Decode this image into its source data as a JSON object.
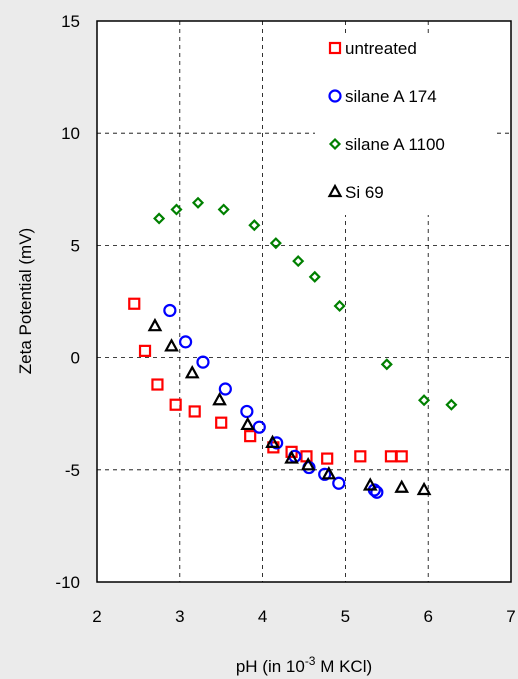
{
  "chart_data": {
    "type": "scatter",
    "xlabel_prefix": "pH (in 10",
    "xlabel_sup": "-3",
    "xlabel_suffix": " M KCl)",
    "ylabel": "Zeta Potential (mV)",
    "xlim": [
      2,
      7
    ],
    "ylim": [
      -10,
      15
    ],
    "xticks": [
      2,
      3,
      4,
      5,
      6,
      7
    ],
    "yticks": [
      -10,
      -5,
      0,
      5,
      10,
      15
    ],
    "grid": "dashed",
    "legend_position": "top-right",
    "series": [
      {
        "name": "untreated",
        "marker": "square",
        "color": "#ff0000",
        "points": [
          [
            2.45,
            2.4
          ],
          [
            2.58,
            0.3
          ],
          [
            2.73,
            -1.2
          ],
          [
            2.95,
            -2.1
          ],
          [
            3.18,
            -2.4
          ],
          [
            3.5,
            -2.9
          ],
          [
            3.85,
            -3.5
          ],
          [
            4.13,
            -4.0
          ],
          [
            4.35,
            -4.2
          ],
          [
            4.53,
            -4.4
          ],
          [
            4.78,
            -4.5
          ],
          [
            5.18,
            -4.4
          ],
          [
            5.55,
            -4.4
          ],
          [
            5.68,
            -4.4
          ]
        ]
      },
      {
        "name": "silane A 174",
        "marker": "circle",
        "color": "#0000ff",
        "points": [
          [
            2.88,
            2.1
          ],
          [
            3.07,
            0.7
          ],
          [
            3.28,
            -0.2
          ],
          [
            3.55,
            -1.4
          ],
          [
            3.81,
            -2.4
          ],
          [
            3.96,
            -3.1
          ],
          [
            4.17,
            -3.8
          ],
          [
            4.39,
            -4.4
          ],
          [
            4.56,
            -4.9
          ],
          [
            4.75,
            -5.2
          ],
          [
            4.92,
            -5.6
          ],
          [
            5.35,
            -5.9
          ],
          [
            5.38,
            -6.0
          ]
        ]
      },
      {
        "name": "silane A 1100",
        "marker": "diamond",
        "color": "#008000",
        "points": [
          [
            2.75,
            6.2
          ],
          [
            2.96,
            6.6
          ],
          [
            3.22,
            6.9
          ],
          [
            3.53,
            6.6
          ],
          [
            3.9,
            5.9
          ],
          [
            4.16,
            5.1
          ],
          [
            4.43,
            4.3
          ],
          [
            4.63,
            3.6
          ],
          [
            4.93,
            2.3
          ],
          [
            5.5,
            -0.3
          ],
          [
            5.95,
            -1.9
          ],
          [
            6.28,
            -2.1
          ]
        ]
      },
      {
        "name": "Si 69",
        "marker": "triangle",
        "color": "#000000",
        "points": [
          [
            2.7,
            1.4
          ],
          [
            2.9,
            0.5
          ],
          [
            3.15,
            -0.7
          ],
          [
            3.48,
            -1.9
          ],
          [
            3.82,
            -3.0
          ],
          [
            4.12,
            -3.8
          ],
          [
            4.35,
            -4.5
          ],
          [
            4.55,
            -4.8
          ],
          [
            4.8,
            -5.2
          ],
          [
            5.3,
            -5.7
          ],
          [
            5.68,
            -5.8
          ],
          [
            5.95,
            -5.9
          ]
        ]
      }
    ]
  }
}
